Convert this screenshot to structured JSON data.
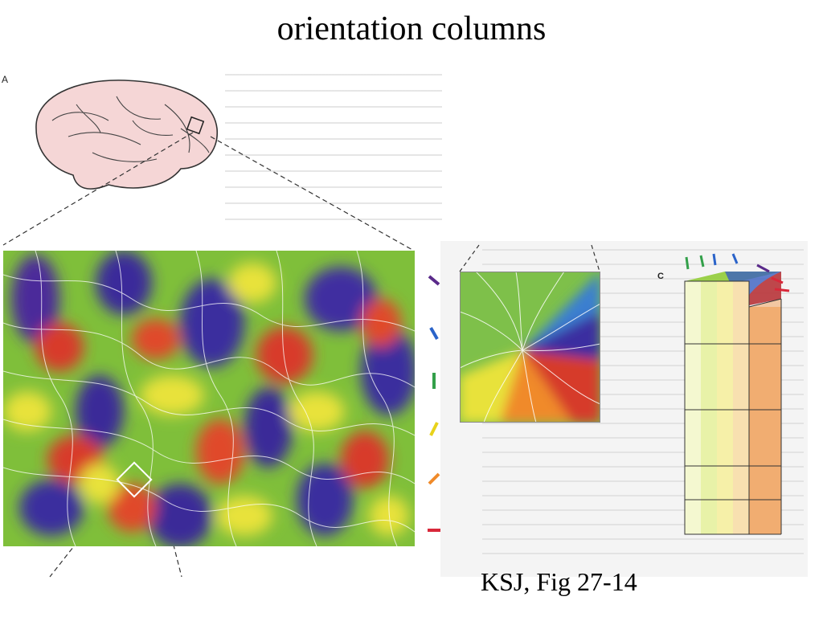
{
  "slide": {
    "title": "orientation columns",
    "citation": "KSJ, Fig 27-14"
  },
  "panels": {
    "a_label": "A",
    "c_label": "C"
  },
  "orientation_colors": [
    "#5a2a8a",
    "#2a63c9",
    "#33a04a",
    "#e8d21a",
    "#f08a2a",
    "#d8283a"
  ],
  "icons": {
    "brain": "brain-illustration",
    "map": "orientation-map",
    "pinwheel": "pinwheel",
    "column": "orientation-column"
  }
}
